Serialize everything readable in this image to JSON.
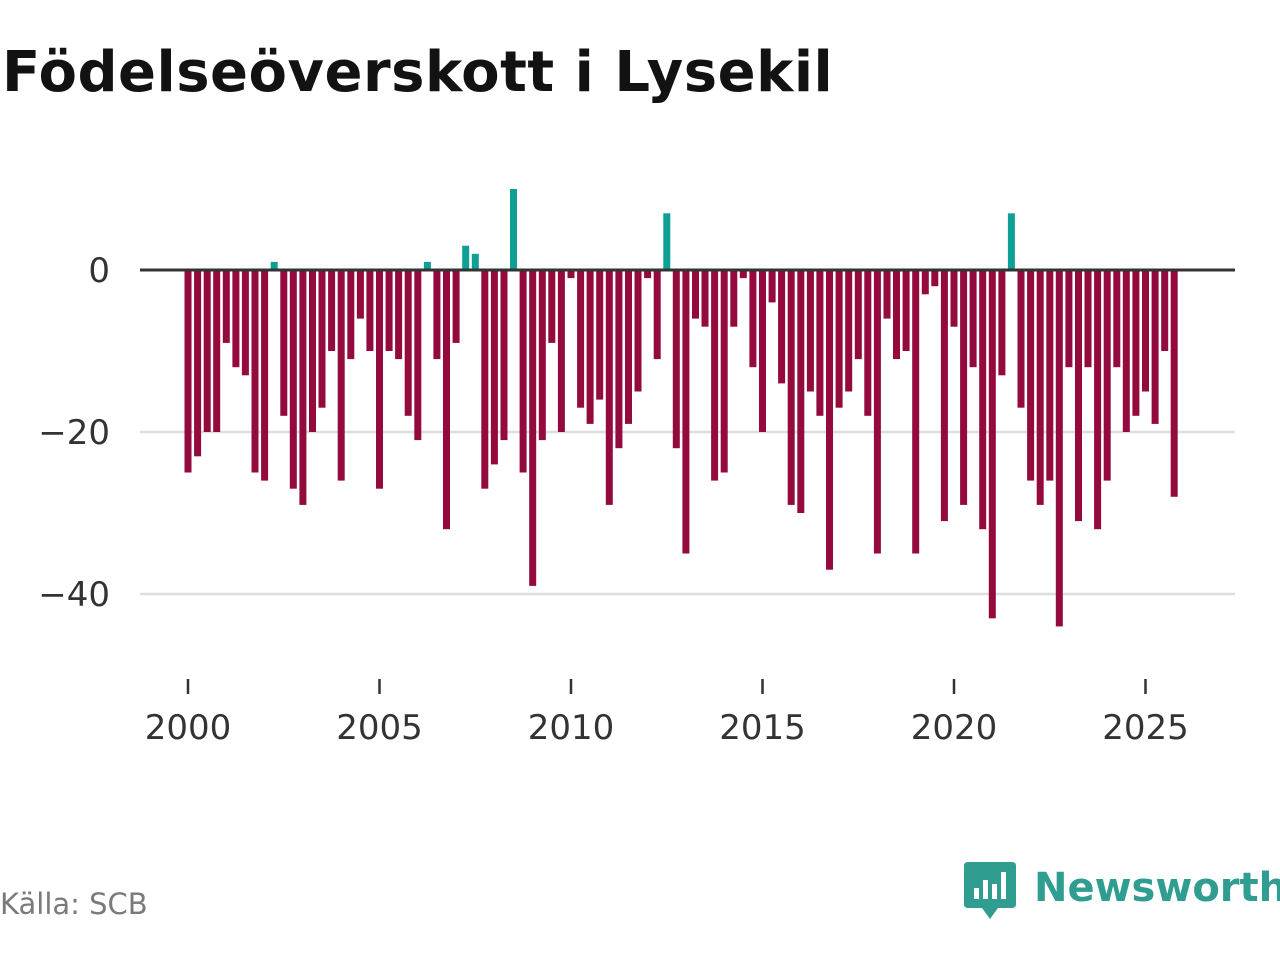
{
  "colors": {
    "positive": "#0e9f95",
    "negative": "#940a3e",
    "baseline": "#333333",
    "grid": "#dddddd",
    "brand": "#2f9d8f"
  },
  "source": "Källa: SCB",
  "brand": {
    "name": "Newsworthy",
    "icon": "newsworthy-logo-icon"
  },
  "chart_data": {
    "type": "bar",
    "title": "Födelseöverskott i Lysekil",
    "xlabel": "",
    "ylabel": "",
    "ylim": [
      -50,
      13
    ],
    "y_ticks": [
      0,
      -20,
      -40
    ],
    "y_tick_labels": [
      "0",
      "−20",
      "−40"
    ],
    "x_start": 2000,
    "x_step": 0.25,
    "x_ticks": [
      2000,
      2005,
      2010,
      2015,
      2020,
      2025
    ],
    "x_tick_labels": [
      "2000",
      "2005",
      "2010",
      "2015",
      "2020",
      "2025"
    ],
    "values": [
      -25,
      -23,
      -20,
      -20,
      -9,
      -12,
      -13,
      -25,
      -26,
      1,
      -18,
      -27,
      -29,
      -20,
      -17,
      -10,
      -26,
      -11,
      -6,
      -10,
      -27,
      -10,
      -11,
      -18,
      -21,
      1,
      -11,
      -32,
      -9,
      3,
      2,
      -27,
      -24,
      -21,
      10,
      -25,
      -39,
      -21,
      -9,
      -20,
      -1,
      -17,
      -19,
      -16,
      -29,
      -22,
      -19,
      -15,
      -1,
      -11,
      7,
      -22,
      -35,
      -6,
      -7,
      -26,
      -25,
      -7,
      -1,
      -12,
      -20,
      -4,
      -14,
      -29,
      -30,
      -15,
      -18,
      -37,
      -17,
      -15,
      -11,
      -18,
      -35,
      -6,
      -11,
      -10,
      -35,
      -3,
      -2,
      -31,
      -7,
      -29,
      -12,
      -32,
      -43,
      -13,
      7,
      -17,
      -26,
      -29,
      -26,
      -44,
      -12,
      -31,
      -12,
      -32,
      -26,
      -12,
      -20,
      -18,
      -15,
      -19,
      -10,
      -28
    ]
  }
}
